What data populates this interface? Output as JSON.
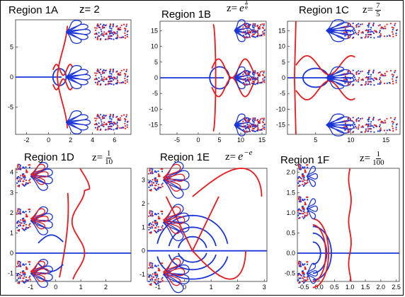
{
  "panels": [
    {
      "title": "Region 1A",
      "z_text": "z= 2",
      "z_kind": "plain",
      "xticks": [
        "-2",
        "0",
        "2",
        "4",
        "6"
      ],
      "yticks": [
        "5",
        "0",
        "-5"
      ],
      "xlim": [
        -3,
        7.5
      ],
      "ylim": [
        -9.5,
        9.5
      ]
    },
    {
      "title": "Region 1B",
      "z_prefix": "z=",
      "z_base": "e",
      "z_num": "1",
      "z_den": "e",
      "z_kind": "exp",
      "xticks": [
        "-5",
        "0",
        "5",
        "10",
        "15"
      ],
      "yticks": [
        "15",
        "10",
        "5",
        "0",
        "-5",
        "-10",
        "-15"
      ],
      "xlim": [
        -9,
        16
      ],
      "ylim": [
        -18,
        18
      ]
    },
    {
      "title": "Region 1C",
      "z_prefix": "z=",
      "z_num": "7",
      "z_den": "5",
      "z_kind": "frac",
      "xticks": [
        "5",
        "10",
        "15"
      ],
      "yticks": [
        "15",
        "10",
        "5",
        "0",
        "-5",
        "-10",
        "-15"
      ],
      "xlim": [
        1,
        17
      ],
      "ylim": [
        -18,
        18
      ]
    },
    {
      "title": "Region 1D",
      "z_prefix": "z=",
      "z_num": "1",
      "z_den": "10",
      "z_kind": "frac",
      "xticks": [
        "-1",
        "0",
        "1",
        "2"
      ],
      "yticks": [
        "4",
        "3",
        "2",
        "1",
        "0",
        "-1"
      ],
      "xlim": [
        -1.6,
        3
      ],
      "ylim": [
        -1.4,
        4.2
      ]
    },
    {
      "title": "Region 1E",
      "z_prefix": "z=",
      "z_base": "e",
      "z_exp": "−e",
      "z_kind": "expneg",
      "xticks": [
        "-1",
        "0",
        "1",
        "2",
        "3"
      ],
      "yticks": [
        "3",
        "2",
        "1",
        "0",
        "-1"
      ],
      "xlim": [
        -1.4,
        3.1
      ],
      "ylim": [
        -1.3,
        3.5
      ]
    },
    {
      "title": "Region 1F",
      "z_prefix": "z=",
      "z_num": "1",
      "z_den": "100",
      "z_kind": "frac",
      "xticks": [
        "-0.5",
        "0.0",
        "0.5",
        "1.0",
        "1.5",
        "2.0",
        "2.5"
      ],
      "yticks": [
        "2.0",
        "1.5",
        "1.0",
        "0.5",
        "0.0",
        "-0.5"
      ],
      "xlim": [
        -0.7,
        2.6
      ],
      "ylim": [
        -0.7,
        2.1
      ]
    }
  ],
  "chart_data": [
    {
      "type": "line",
      "title": "Region 1A",
      "xlim": [
        -3,
        7.5
      ],
      "ylim": [
        -9.5,
        9.5
      ],
      "colors": {
        "red": "#e8191d",
        "blue": "#1b35d8"
      }
    },
    {
      "type": "line",
      "title": "Region 1B",
      "xlim": [
        -9,
        16
      ],
      "ylim": [
        -18,
        18
      ],
      "colors": {
        "red": "#e8191d",
        "blue": "#1b35d8"
      }
    },
    {
      "type": "line",
      "title": "Region 1C",
      "xlim": [
        1,
        17
      ],
      "ylim": [
        -18,
        18
      ],
      "colors": {
        "red": "#e8191d",
        "blue": "#1b35d8"
      }
    },
    {
      "type": "line",
      "title": "Region 1D",
      "xlim": [
        -1.6,
        3
      ],
      "ylim": [
        -1.4,
        4.2
      ],
      "colors": {
        "red": "#e8191d",
        "blue": "#1b35d8"
      }
    },
    {
      "type": "line",
      "title": "Region 1E",
      "xlim": [
        -1.4,
        3.1
      ],
      "ylim": [
        -1.3,
        3.5
      ],
      "colors": {
        "red": "#e8191d",
        "blue": "#1b35d8"
      }
    },
    {
      "type": "line",
      "title": "Region 1F",
      "xlim": [
        -0.7,
        2.6
      ],
      "ylim": [
        -0.7,
        2.1
      ],
      "colors": {
        "red": "#e8191d",
        "blue": "#1b35d8"
      }
    }
  ]
}
